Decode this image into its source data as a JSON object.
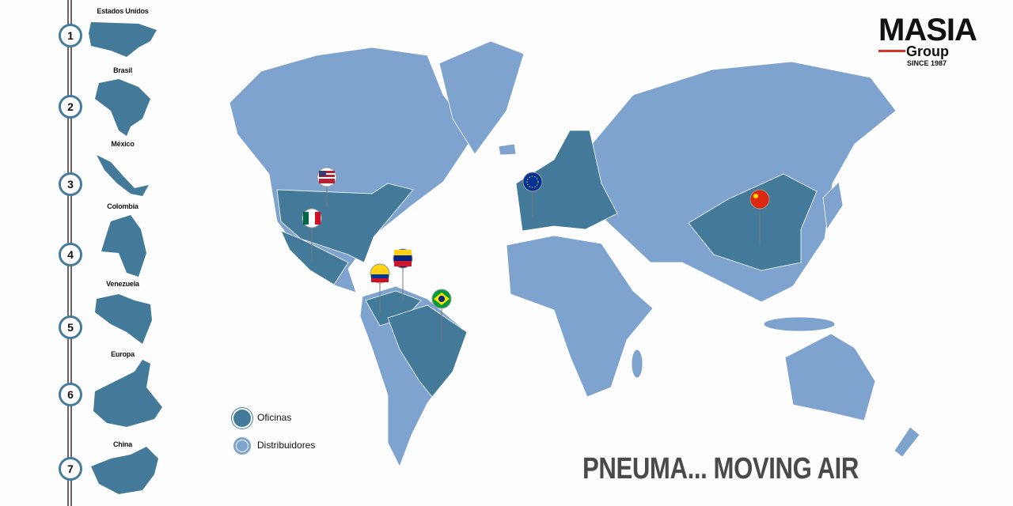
{
  "colors": {
    "oficinas": "#437a99",
    "distribuidores": "#7fa3cf",
    "rail": "#6b6561",
    "accent": "#d9342b"
  },
  "logo": {
    "brand": "MASIA",
    "sub": "Group",
    "since": "SINCE 1987"
  },
  "countries": [
    {
      "number": "1",
      "name": "Estados Unidos"
    },
    {
      "number": "2",
      "name": "Brasil"
    },
    {
      "number": "3",
      "name": "México"
    },
    {
      "number": "4",
      "name": "Colombia"
    },
    {
      "number": "5",
      "name": "Venezuela"
    },
    {
      "number": "6",
      "name": "Europa"
    },
    {
      "number": "7",
      "name": "China"
    }
  ],
  "legend": [
    {
      "label": "Oficinas"
    },
    {
      "label": "Distribuidores"
    }
  ],
  "pins": [
    "usa-flag",
    "mexico-flag",
    "venezuela-flag",
    "colombia-flag",
    "brazil-flag",
    "eu-flag",
    "china-flag"
  ],
  "slogan": "PNEUMA... MOVING AIR"
}
